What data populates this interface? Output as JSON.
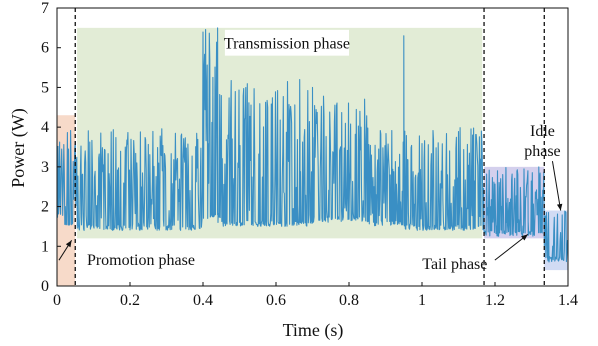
{
  "chart_data": {
    "type": "line",
    "title": "",
    "xlabel": "Time (s)",
    "ylabel": "Power (W)",
    "xlim": [
      0,
      1.4
    ],
    "ylim": [
      0,
      7
    ],
    "xticks": [
      "0",
      "0.2",
      "0.4",
      "0.6",
      "0.8",
      "1",
      "1.2",
      "1.4"
    ],
    "yticks": [
      "0",
      "1",
      "2",
      "3",
      "4",
      "5",
      "6",
      "7"
    ],
    "grid": false,
    "series_color": "#3a8fc4",
    "phase_boundaries_s": [
      0.05,
      1.17,
      1.335
    ],
    "regions": [
      {
        "name": "Promotion phase",
        "x": [
          0.0,
          0.05
        ],
        "y": [
          0,
          4.3
        ],
        "color": "#f6d3c0"
      },
      {
        "name": "Transmission phase",
        "x": [
          0.055,
          1.165
        ],
        "y": [
          1.2,
          6.5
        ],
        "color": "#dde9cf"
      },
      {
        "name": "Tail phase",
        "x": [
          1.17,
          1.335
        ],
        "y": [
          1.2,
          3.0
        ],
        "color": "#cdc8ea"
      },
      {
        "name": "Idle phase",
        "x": [
          1.335,
          1.4
        ],
        "y": [
          0.4,
          1.9
        ],
        "color": "#c9d5f2"
      }
    ],
    "annotations": [
      {
        "text": "Transmission phase",
        "x": 0.63,
        "y": 6.1
      },
      {
        "text": "Promotion phase",
        "x": 0.23,
        "y": 0.65,
        "arrow_to": [
          0.04,
          1.15
        ]
      },
      {
        "text": "Tail phase",
        "x": 1.09,
        "y": 0.55,
        "arrow_to": [
          1.29,
          1.3
        ]
      },
      {
        "text": "Idle phase",
        "x": 1.33,
        "y": 3.9,
        "arrow_to": [
          1.38,
          1.9
        ]
      }
    ],
    "segments": [
      {
        "x": [
          0.0,
          0.02
        ],
        "base": 1.7,
        "peak": 4.0
      },
      {
        "x": [
          0.02,
          0.05
        ],
        "base": 1.5,
        "peak": 4.0
      },
      {
        "x": [
          0.05,
          0.4
        ],
        "base": 1.4,
        "peak": 4.0
      },
      {
        "x": [
          0.4,
          0.45
        ],
        "base": 1.7,
        "peak": 6.5
      },
      {
        "x": [
          0.45,
          0.7
        ],
        "base": 1.5,
        "peak": 5.2
      },
      {
        "x": [
          0.7,
          0.85
        ],
        "base": 1.6,
        "peak": 4.8
      },
      {
        "x": [
          0.85,
          0.95
        ],
        "base": 1.5,
        "peak": 4.0
      },
      {
        "x": [
          0.95,
          1.17
        ],
        "base": 1.4,
        "peak": 4.0
      },
      {
        "x": [
          1.17,
          1.335
        ],
        "base": 1.25,
        "peak": 3.0
      },
      {
        "x": [
          1.335,
          1.4
        ],
        "base": 0.6,
        "peak": 1.9
      }
    ],
    "spikes": [
      {
        "x": 0.44,
        "y": 6.5
      },
      {
        "x": 0.95,
        "y": 6.3
      },
      {
        "x": 0.665,
        "y": 5.2
      },
      {
        "x": 0.7,
        "y": 5.0
      },
      {
        "x": 1.23,
        "y": 2.9
      },
      {
        "x": 1.26,
        "y": 2.9
      },
      {
        "x": 1.29,
        "y": 2.9
      },
      {
        "x": 1.32,
        "y": 3.0
      }
    ]
  }
}
